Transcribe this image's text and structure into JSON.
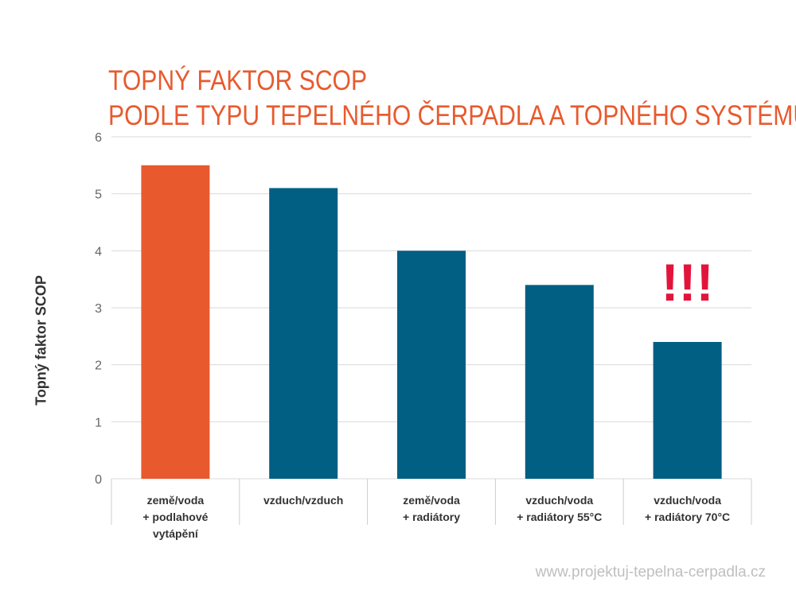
{
  "chart_data": {
    "type": "bar",
    "title": [
      "TOPNÝ FAKTOR SCOP",
      "PODLE TYPU TEPELNÉHO  ČERPADLA A TOPNÉHO SYSTÉMU"
    ],
    "ylabel": "Topný faktor SCOP",
    "xlabel": "",
    "ylim": [
      0,
      6
    ],
    "yticks": [
      "0",
      "1",
      "2",
      "3",
      "4",
      "5",
      "6"
    ],
    "grid": true,
    "categories": [
      [
        "země/voda",
        "+ podlahové",
        "vytápění"
      ],
      [
        "vzduch/vzduch"
      ],
      [
        "země/voda",
        "+ radiátory"
      ],
      [
        "vzduch/voda",
        "+ radiátory 55°C"
      ],
      [
        "vzduch/voda",
        "+ radiátory 70°C"
      ]
    ],
    "values": [
      5.5,
      5.1,
      4.0,
      3.4,
      2.4
    ],
    "bar_colors": [
      "#e85a2e",
      "#005f82",
      "#005f82",
      "#005f82",
      "#005f82"
    ],
    "annotation": {
      "text": "!!!",
      "category_index": 4,
      "color": "#e3143b"
    }
  },
  "watermark": "www.projektuj-tepelna-cerpadla.cz"
}
